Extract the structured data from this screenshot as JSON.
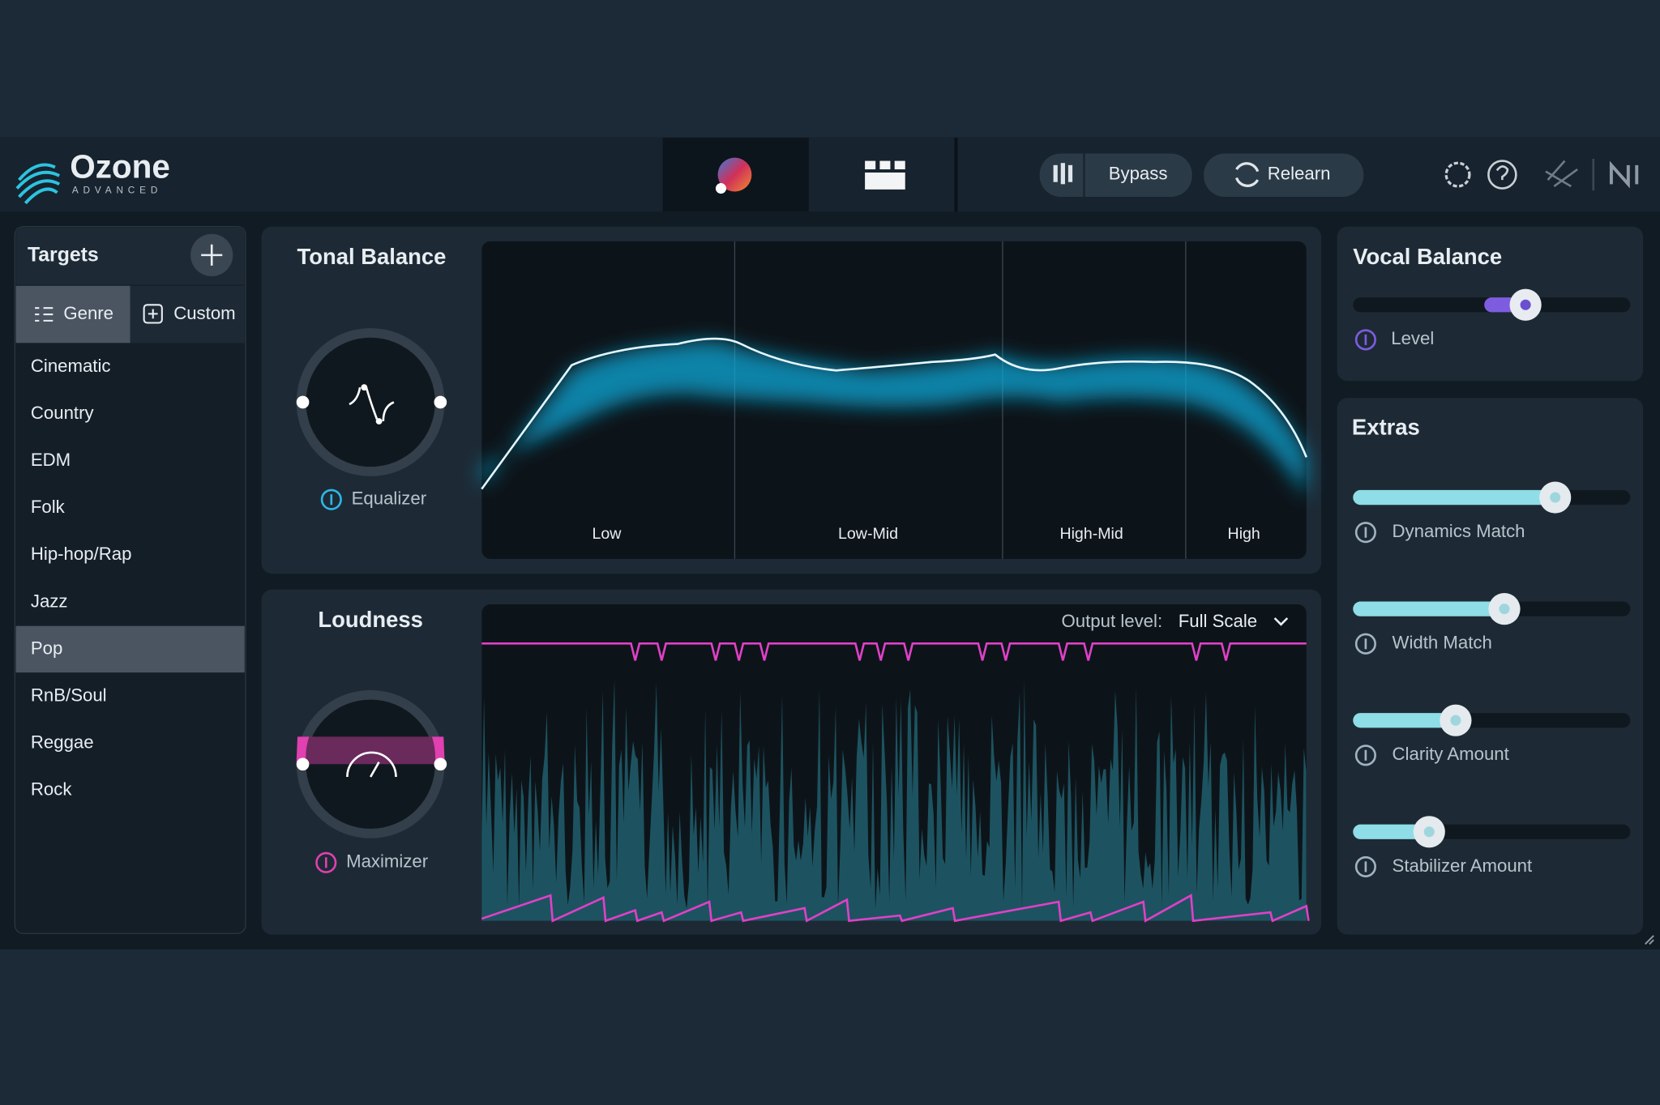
{
  "header": {
    "logo": "Ozone",
    "edition": "ADVANCED",
    "bypass": "Bypass",
    "relearn": "Relearn"
  },
  "targets": {
    "title": "Targets",
    "tabs": [
      "Genre",
      "Custom"
    ],
    "genres": [
      "Cinematic",
      "Country",
      "EDM",
      "Folk",
      "Hip-hop/Rap",
      "Jazz",
      "Pop",
      "RnB/Soul",
      "Reggae",
      "Rock"
    ],
    "selected": "Pop"
  },
  "tonal_balance": {
    "title": "Tonal Balance",
    "module": "Equalizer",
    "bands": [
      "Low",
      "Low-Mid",
      "High-Mid",
      "High"
    ]
  },
  "loudness": {
    "title": "Loudness",
    "module": "Maximizer",
    "output_label": "Output level:",
    "output_value": "Full Scale"
  },
  "vocal_balance": {
    "title": "Vocal Balance",
    "control": "Level"
  },
  "extras": {
    "title": "Extras",
    "controls": [
      "Dynamics Match",
      "Width Match",
      "Clarity Amount",
      "Stabilizer Amount"
    ]
  }
}
